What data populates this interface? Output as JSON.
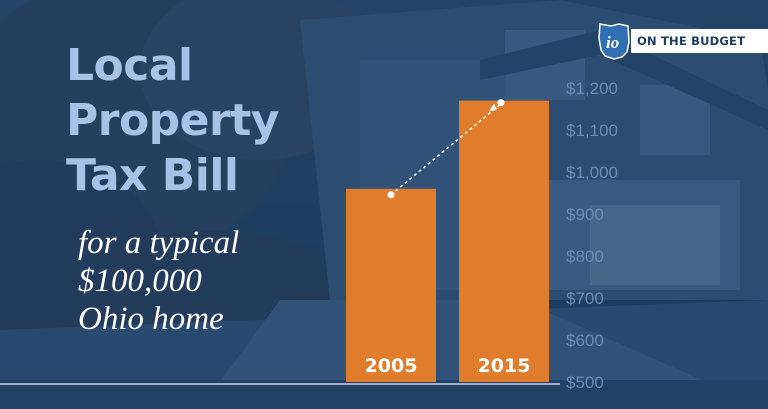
{
  "header": {
    "title_lines": [
      "Local",
      "Property",
      "Tax Bill"
    ],
    "subtitle_lines": [
      "for a typical",
      "$100,000",
      "Ohio home"
    ]
  },
  "logo": {
    "mark_text": "io",
    "label": "ON THE BUDGET",
    "icon": "ohio-state-icon"
  },
  "colors": {
    "bar": "#e07d2c",
    "title": "#a9c1e6",
    "tick": "#6f8bb3",
    "baseline": "#c9d6ea",
    "trend": "#ffffff"
  },
  "chart_data": {
    "type": "bar",
    "categories": [
      "2005",
      "2015"
    ],
    "values": [
      960,
      1170
    ],
    "y_ticks": [
      "$1,200",
      "$1,100",
      "$1,000",
      "$900",
      "$800",
      "$700",
      "$600",
      "$500"
    ],
    "ylim": [
      500,
      1200
    ],
    "grid": false,
    "category_labels_inside_bars": true,
    "trend_arrow": true
  }
}
